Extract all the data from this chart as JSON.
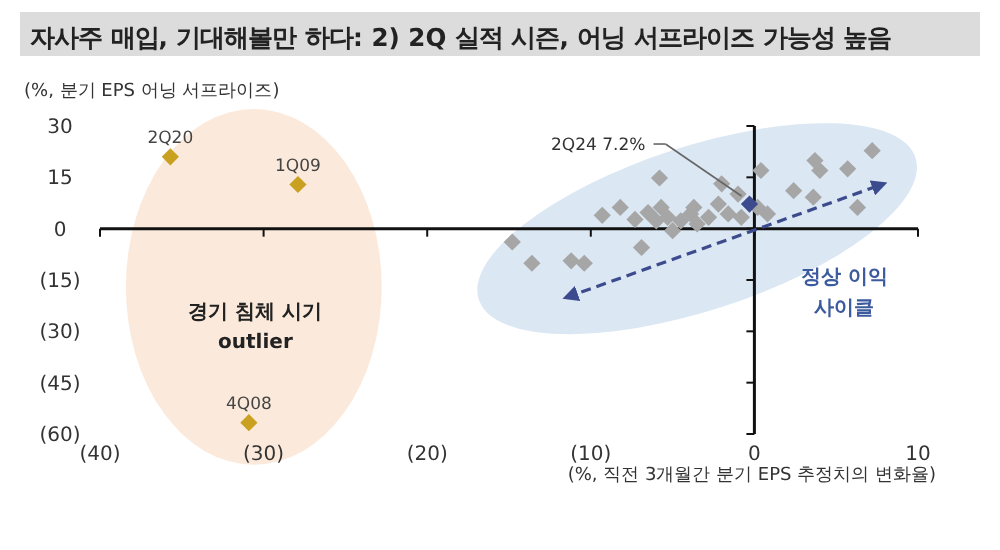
{
  "chart_data": {
    "type": "scatter",
    "title": "자사주 매입, 기대해볼만 하다: 2) 2Q 실적 시즌, 어닝 서프라이즈 가능성 높음",
    "ylabel": "(%, 분기 EPS 어닝 서프라이즈)",
    "xlabel": "(%, 직전 3개월간 분기 EPS 추정치의 변화율)",
    "xlim": [
      -40,
      10
    ],
    "ylim": [
      -60,
      30
    ],
    "xticks": [
      {
        "value": -40,
        "label": "(40)"
      },
      {
        "value": -30,
        "label": "(30)"
      },
      {
        "value": -20,
        "label": "(20)"
      },
      {
        "value": -10,
        "label": "(10)"
      },
      0,
      10
    ],
    "yticks": [
      30,
      15,
      0,
      {
        "value": -15,
        "label": "(15)"
      },
      {
        "value": -30,
        "label": "(30)"
      },
      {
        "value": -45,
        "label": "(45)"
      },
      {
        "value": -60,
        "label": "(60)"
      }
    ],
    "marker": "diamond",
    "series": [
      {
        "color": "#a6a6a6",
        "x": [
          -14.8,
          -13.6,
          -11.2,
          -10.4,
          -9.3,
          -8.2,
          -7.3,
          -6.9,
          -6.5,
          -6.0,
          -5.8,
          -5.7,
          -5.3,
          -5.0,
          -4.5,
          -3.9,
          -3.7,
          -3.5,
          -2.8,
          -2.2,
          -2.0,
          -1.6,
          -1.0,
          -0.8,
          0.2,
          0.4,
          0.8,
          2.4,
          3.6,
          3.7,
          4.0,
          5.7,
          6.3,
          7.2
        ],
        "values": [
          -3.9,
          -10.1,
          -9.4,
          -10.1,
          3.9,
          6.2,
          2.7,
          -5.5,
          4.7,
          2.3,
          14.8,
          6.2,
          3.3,
          -0.6,
          2.3,
          4.3,
          6.2,
          1.4,
          3.3,
          7.2,
          13.1,
          4.3,
          10.1,
          3.3,
          6.2,
          17.0,
          4.3,
          11.1,
          9.2,
          19.9,
          17.0,
          17.5,
          6.2,
          22.8
        ]
      },
      {
        "color": "#c9a020",
        "x": [
          -35.7,
          -27.9,
          -30.9
        ],
        "values": [
          21,
          12.9,
          -56.7
        ]
      },
      {
        "color": "#3c4a8e",
        "x": [
          -0.3
        ],
        "values": [
          7.2
        ]
      },
      {
        "type": "line",
        "color": "#3c4a8e",
        "line_style": "dashed",
        "marker": "none",
        "x": [
          -11.5,
          7.9
        ],
        "values": [
          -20.1,
          13.1
        ]
      }
    ],
    "annotations": [
      {
        "text": "2Q20",
        "x": -35.7,
        "y": 21
      },
      {
        "text": "1Q09",
        "x": -27.9,
        "y": 12.9
      },
      {
        "text": "4Q08",
        "x": -30.9,
        "y": -56.7
      },
      {
        "text": "2Q24 7.2%",
        "x": -0.3,
        "y": 7.2
      },
      "경기 침체 시기",
      "outlier",
      "정상 이익",
      "사이클"
    ]
  }
}
